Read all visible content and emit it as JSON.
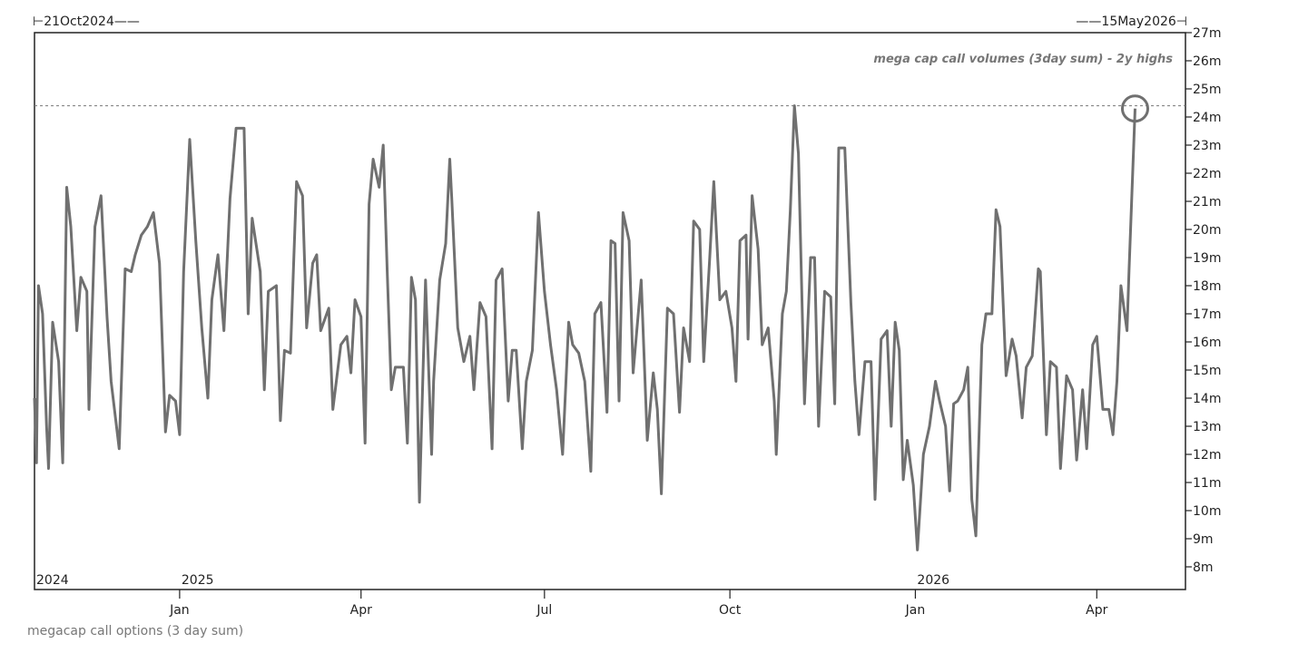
{
  "chart_data": {
    "type": "line",
    "title": "",
    "caption": "megacap call options (3 day sum)",
    "annotation": "mega cap call volumes (3day sum) - 2y highs",
    "range_start_label": "21Oct2024",
    "range_end_label": "15May2026",
    "xlabel": "",
    "ylabel": "",
    "xlim": [
      "2024-10-21",
      "2026-05-15"
    ],
    "ylim": [
      7.3,
      27
    ],
    "y_ticks": [
      "8m",
      "9m",
      "10m",
      "11m",
      "12m",
      "13m",
      "14m",
      "15m",
      "16m",
      "17m",
      "18m",
      "19m",
      "20m",
      "21m",
      "22m",
      "23m",
      "24m",
      "25m",
      "26m",
      "27m"
    ],
    "x_ticks": [
      {
        "date": "2025-01-01",
        "label": "Jan"
      },
      {
        "date": "2025-04-01",
        "label": "Apr"
      },
      {
        "date": "2025-07-01",
        "label": "Jul"
      },
      {
        "date": "2025-10-01",
        "label": "Oct"
      },
      {
        "date": "2026-01-01",
        "label": "Jan"
      },
      {
        "date": "2026-04-01",
        "label": "Apr"
      }
    ],
    "year_labels": [
      {
        "date": "2024-10-21",
        "label": "2024"
      },
      {
        "date": "2025-01-01",
        "label": "2025"
      },
      {
        "date": "2026-01-01",
        "label": "2026"
      }
    ],
    "reference_line": {
      "value": 24.4,
      "style": "dashed"
    },
    "highlight": {
      "date": "2026-04-20",
      "value": 24.3,
      "marker": "circle"
    },
    "grid": false,
    "line_color": "#707070",
    "series": [
      {
        "dates": [
          "2024-10-21",
          "2024-10-22",
          "2024-10-23",
          "2024-10-25",
          "2024-10-27",
          "2024-10-28",
          "2024-10-30",
          "2024-11-02",
          "2024-11-04",
          "2024-11-06",
          "2024-11-08",
          "2024-11-11",
          "2024-11-13",
          "2024-11-16",
          "2024-11-17",
          "2024-11-20",
          "2024-11-23",
          "2024-11-26",
          "2024-11-28",
          "2024-12-02",
          "2024-12-05",
          "2024-12-08",
          "2024-12-10",
          "2024-12-13",
          "2024-12-16",
          "2024-12-19",
          "2024-12-22",
          "2024-12-25",
          "2024-12-27",
          "2024-12-30",
          "2025-01-01",
          "2025-01-03",
          "2025-01-06",
          "2025-01-09",
          "2025-01-12",
          "2025-01-15",
          "2025-01-17",
          "2025-01-20",
          "2025-01-23",
          "2025-01-26",
          "2025-01-29",
          "2025-02-02",
          "2025-02-04",
          "2025-02-06",
          "2025-02-10",
          "2025-02-12",
          "2025-02-14",
          "2025-02-18",
          "2025-02-20",
          "2025-02-22",
          "2025-02-25",
          "2025-02-28",
          "2025-03-03",
          "2025-03-05",
          "2025-03-08",
          "2025-03-10",
          "2025-03-12",
          "2025-03-16",
          "2025-03-18",
          "2025-03-22",
          "2025-03-25",
          "2025-03-27",
          "2025-03-29",
          "2025-04-01",
          "2025-04-03",
          "2025-04-05",
          "2025-04-07",
          "2025-04-10",
          "2025-04-12",
          "2025-04-14",
          "2025-04-16",
          "2025-04-18",
          "2025-04-22",
          "2025-04-24",
          "2025-04-26",
          "2025-04-28",
          "2025-04-30",
          "2025-05-03",
          "2025-05-06",
          "2025-05-07",
          "2025-05-10",
          "2025-05-13",
          "2025-05-15",
          "2025-05-16",
          "2025-05-19",
          "2025-05-22",
          "2025-05-25",
          "2025-05-27",
          "2025-05-30",
          "2025-06-02",
          "2025-06-05",
          "2025-06-07",
          "2025-06-10",
          "2025-06-13",
          "2025-06-15",
          "2025-06-17",
          "2025-06-20",
          "2025-06-22",
          "2025-06-25",
          "2025-06-28",
          "2025-07-01",
          "2025-07-04",
          "2025-07-07",
          "2025-07-10",
          "2025-07-13",
          "2025-07-15",
          "2025-07-18",
          "2025-07-21",
          "2025-07-24",
          "2025-07-26",
          "2025-07-29",
          "2025-08-01",
          "2025-08-03",
          "2025-08-05",
          "2025-08-07",
          "2025-08-09",
          "2025-08-12",
          "2025-08-14",
          "2025-08-18",
          "2025-08-21",
          "2025-08-24",
          "2025-08-26",
          "2025-08-28",
          "2025-08-31",
          "2025-09-03",
          "2025-09-06",
          "2025-09-08",
          "2025-09-11",
          "2025-09-13",
          "2025-09-16",
          "2025-09-18",
          "2025-09-21",
          "2025-09-23",
          "2025-09-26",
          "2025-09-29",
          "2025-10-02",
          "2025-10-04",
          "2025-10-06",
          "2025-10-09",
          "2025-10-10",
          "2025-10-12",
          "2025-10-15",
          "2025-10-17",
          "2025-10-20",
          "2025-10-23",
          "2025-10-24",
          "2025-10-27",
          "2025-10-29",
          "2025-10-31",
          "2025-11-02",
          "2025-11-04",
          "2025-11-07",
          "2025-11-10",
          "2025-11-12",
          "2025-11-14",
          "2025-11-17",
          "2025-11-20",
          "2025-11-22",
          "2025-11-24",
          "2025-11-27",
          "2025-11-30",
          "2025-12-02",
          "2025-12-04",
          "2025-12-07",
          "2025-12-10",
          "2025-12-12",
          "2025-12-15",
          "2025-12-18",
          "2025-12-20",
          "2025-12-22",
          "2025-12-24",
          "2025-12-26",
          "2025-12-28",
          "2025-12-31",
          "2026-01-02",
          "2026-01-05",
          "2026-01-08",
          "2026-01-11",
          "2026-01-13",
          "2026-01-16",
          "2026-01-18",
          "2026-01-20",
          "2026-01-22",
          "2026-01-25",
          "2026-01-27",
          "2026-01-29",
          "2026-01-31",
          "2026-02-03",
          "2026-02-05",
          "2026-02-08",
          "2026-02-10",
          "2026-02-12",
          "2026-02-15",
          "2026-02-18",
          "2026-02-20",
          "2026-02-23",
          "2026-02-25",
          "2026-02-28",
          "2026-03-03",
          "2026-03-04",
          "2026-03-07",
          "2026-03-09",
          "2026-03-12",
          "2026-03-14",
          "2026-03-17",
          "2026-03-20",
          "2026-03-22",
          "2026-03-25",
          "2026-03-27",
          "2026-03-30",
          "2026-04-01",
          "2026-04-04",
          "2026-04-07",
          "2026-04-09",
          "2026-04-11",
          "2026-04-13",
          "2026-04-16",
          "2026-04-17",
          "2026-04-20"
        ],
        "values": [
          14.0,
          11.7,
          18.0,
          17.0,
          13.0,
          11.5,
          16.7,
          15.3,
          11.7,
          21.5,
          20.1,
          16.4,
          18.3,
          17.8,
          13.6,
          20.1,
          21.2,
          16.9,
          14.6,
          12.2,
          18.6,
          18.5,
          19.1,
          19.8,
          20.1,
          20.6,
          18.8,
          12.8,
          14.1,
          13.9,
          12.7,
          18.5,
          23.2,
          19.6,
          16.5,
          14.0,
          17.5,
          19.1,
          16.4,
          21.1,
          23.6,
          23.6,
          17.0,
          20.4,
          18.5,
          14.3,
          17.8,
          18.0,
          13.2,
          15.7,
          15.6,
          21.7,
          21.2,
          16.5,
          18.8,
          19.1,
          16.4,
          17.2,
          13.6,
          15.9,
          16.2,
          14.9,
          17.5,
          16.9,
          12.4,
          20.9,
          22.5,
          21.5,
          23.0,
          18.5,
          14.3,
          15.1,
          15.1,
          12.4,
          18.3,
          17.5,
          10.3,
          18.2,
          12.0,
          14.6,
          18.2,
          19.5,
          22.5,
          21.1,
          16.5,
          15.3,
          16.2,
          14.3,
          17.4,
          16.9,
          12.2,
          18.2,
          18.6,
          13.9,
          15.7,
          15.7,
          12.2,
          14.6,
          15.7,
          20.6,
          17.8,
          15.9,
          14.3,
          12.0,
          16.7,
          15.9,
          15.6,
          14.6,
          11.4,
          17.0,
          17.4,
          13.5,
          19.6,
          19.5,
          13.9,
          20.6,
          19.6,
          14.9,
          18.2,
          12.5,
          14.9,
          13.6,
          10.6,
          17.2,
          17.0,
          13.5,
          16.5,
          15.3,
          20.3,
          20.0,
          15.3,
          19.0,
          21.7,
          17.5,
          17.8,
          16.5,
          14.6,
          19.6,
          19.8,
          16.1,
          21.2,
          19.3,
          15.9,
          16.5,
          13.9,
          12.0,
          17.0,
          17.8,
          20.7,
          24.4,
          22.7,
          13.8,
          19.0,
          19.0,
          13.0,
          17.8,
          17.6,
          13.8,
          22.9,
          22.9,
          17.4,
          14.6,
          12.7,
          15.3,
          15.3,
          10.4,
          16.1,
          16.4,
          13.0,
          16.7,
          15.7,
          11.1,
          12.5,
          10.9,
          8.6,
          12.0,
          13.0,
          14.6,
          13.9,
          13.0,
          10.7,
          13.8,
          13.9,
          14.3,
          15.1,
          10.4,
          9.1,
          15.9,
          17.0,
          17.0,
          20.7,
          20.1,
          14.8,
          16.1,
          15.5,
          13.3,
          15.1,
          15.5,
          18.6,
          18.5,
          12.7,
          15.3,
          15.1,
          11.5,
          14.8,
          14.3,
          11.8,
          14.3,
          12.2,
          15.9,
          16.2,
          13.6,
          13.6,
          12.7,
          14.6,
          18.0,
          16.4,
          18.5,
          24.3
        ]
      }
    ]
  }
}
